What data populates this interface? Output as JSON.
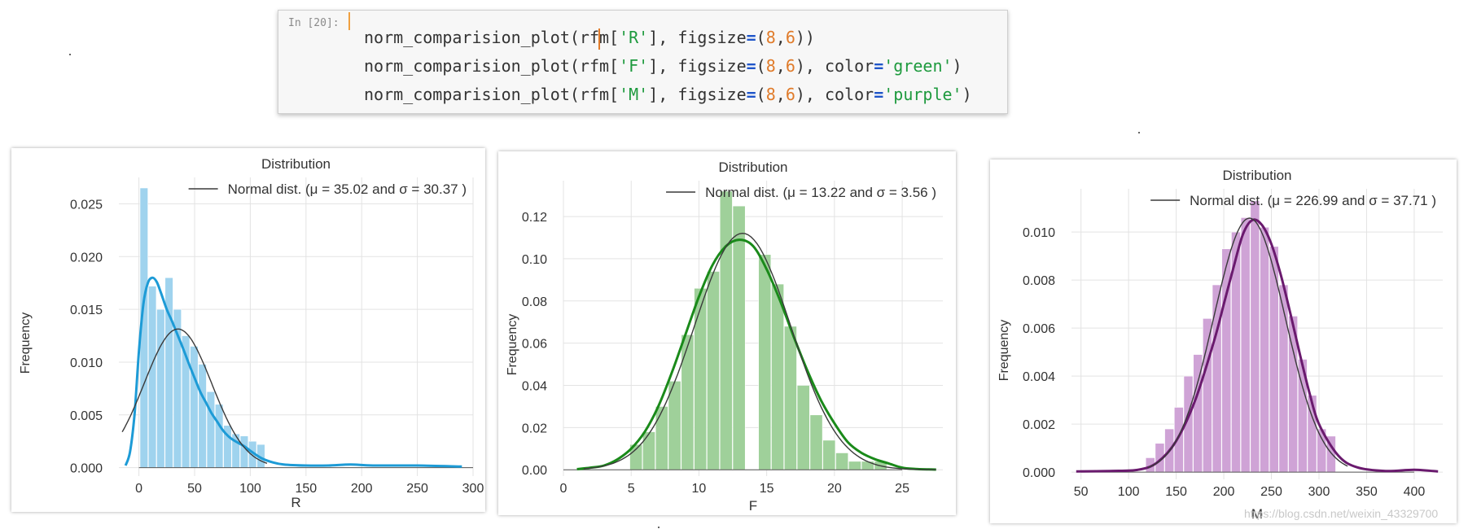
{
  "cell": {
    "prompt": "In [20]:",
    "lines": [
      [
        {
          "t": "norm_comparision_plot(rf",
          "c": "plain"
        },
        {
          "t": "cursor",
          "c": "cursor"
        },
        {
          "t": "m[",
          "c": "plain"
        },
        {
          "t": "'R'",
          "c": "str"
        },
        {
          "t": "], figsize",
          "c": "plain"
        },
        {
          "t": "=",
          "c": "op"
        },
        {
          "t": "(",
          "c": "plain"
        },
        {
          "t": "8",
          "c": "num"
        },
        {
          "t": ",",
          "c": "plain"
        },
        {
          "t": "6",
          "c": "num"
        },
        {
          "t": "))",
          "c": "plain"
        }
      ],
      [
        {
          "t": "norm_comparision_plot(rfm[",
          "c": "plain"
        },
        {
          "t": "'F'",
          "c": "str"
        },
        {
          "t": "], figsize",
          "c": "plain"
        },
        {
          "t": "=",
          "c": "op"
        },
        {
          "t": "(",
          "c": "plain"
        },
        {
          "t": "8",
          "c": "num"
        },
        {
          "t": ",",
          "c": "plain"
        },
        {
          "t": "6",
          "c": "num"
        },
        {
          "t": "), color",
          "c": "plain"
        },
        {
          "t": "=",
          "c": "op"
        },
        {
          "t": "'green'",
          "c": "str"
        },
        {
          "t": ")",
          "c": "plain"
        }
      ],
      [
        {
          "t": "norm_comparision_plot(rfm[",
          "c": "plain"
        },
        {
          "t": "'M'",
          "c": "str"
        },
        {
          "t": "], figsize",
          "c": "plain"
        },
        {
          "t": "=",
          "c": "op"
        },
        {
          "t": "(",
          "c": "plain"
        },
        {
          "t": "8",
          "c": "num"
        },
        {
          "t": ",",
          "c": "plain"
        },
        {
          "t": "6",
          "c": "num"
        },
        {
          "t": "), color",
          "c": "plain"
        },
        {
          "t": "=",
          "c": "op"
        },
        {
          "t": "'purple'",
          "c": "str"
        },
        {
          "t": ")",
          "c": "plain"
        }
      ]
    ]
  },
  "watermark": "https://blog.csdn.net/weixin_43329700",
  "chart_data": [
    {
      "type": "bar",
      "title": "Distribution",
      "xlabel": "R",
      "ylabel": "Frequency",
      "xlim": [
        -18,
        300
      ],
      "ylim": [
        -0.0008,
        0.0275
      ],
      "xticks": [
        0,
        50,
        100,
        150,
        200,
        250,
        300
      ],
      "yticks": [
        0.0,
        0.005,
        0.01,
        0.015,
        0.02,
        0.025
      ],
      "ytick_format": 3,
      "grid": true,
      "legend": {
        "placement": "top-right",
        "label": "Normal dist. (μ = 35.02 and σ = 30.37 )"
      },
      "colors": {
        "bars": "#9fd3ee",
        "kde": "#1d9bd6",
        "normal": "#3a3a3a"
      },
      "hist": {
        "bin_width": 7.5,
        "edges_start": 1,
        "values": [
          0.0265,
          0.0172,
          0.015,
          0.018,
          0.015,
          0.0125,
          0.0115,
          0.0098,
          0.0072,
          0.006,
          0.004,
          0.0032,
          0.003,
          0.0025,
          0.0022
        ]
      },
      "kde": {
        "x": [
          -12,
          -8,
          -4,
          0,
          4,
          8,
          12,
          16,
          20,
          25,
          30,
          35,
          40,
          45,
          50,
          55,
          60,
          65,
          70,
          75,
          80,
          85,
          90,
          95,
          100,
          110,
          120,
          130,
          150,
          170,
          190,
          210,
          250,
          290
        ],
        "y": [
          0.0002,
          0.0015,
          0.005,
          0.011,
          0.0155,
          0.0175,
          0.018,
          0.0176,
          0.0165,
          0.015,
          0.0138,
          0.0125,
          0.0112,
          0.0098,
          0.0085,
          0.0072,
          0.0062,
          0.0052,
          0.0044,
          0.0036,
          0.003,
          0.0026,
          0.0023,
          0.002,
          0.0016,
          0.0009,
          0.0005,
          0.0003,
          0.0002,
          0.0002,
          0.0003,
          0.0002,
          0.0002,
          0.0001
        ]
      },
      "normal": {
        "mu": 35.02,
        "sigma": 30.37,
        "xmin": -15,
        "xmax": 115
      }
    },
    {
      "type": "bar",
      "title": "Distribution",
      "xlabel": "F",
      "ylabel": "Frequency",
      "xlim": [
        0,
        28
      ],
      "ylim": [
        -0.003,
        0.137
      ],
      "xticks": [
        0,
        5,
        10,
        15,
        20,
        25
      ],
      "yticks": [
        0.0,
        0.02,
        0.04,
        0.06,
        0.08,
        0.1,
        0.12
      ],
      "ytick_format": 2,
      "grid": true,
      "legend": {
        "placement": "top-right",
        "label": "Normal dist. (μ = 13.22 and σ = 3.56 )"
      },
      "colors": {
        "bars": "#9fd09a",
        "kde": "#1a8a1a",
        "normal": "#3a3a3a"
      },
      "hist": {
        "bin_width": 0.95,
        "edges_start": 4.9,
        "values": [
          0.012,
          0.018,
          0.03,
          0.042,
          0.064,
          0.086,
          0.094,
          0.132,
          0.125,
          0.0,
          0.102,
          0.088,
          0.068,
          0.04,
          0.026,
          0.014,
          0.008,
          0.004,
          0.004,
          0.004
        ]
      },
      "kde": {
        "x": [
          1,
          2,
          3,
          4,
          5,
          6,
          7,
          8,
          9,
          10,
          11,
          12,
          13,
          14,
          15,
          16,
          17,
          18,
          19,
          20,
          21,
          22,
          23,
          24,
          25,
          26,
          27.5
        ],
        "y": [
          0.0003,
          0.001,
          0.002,
          0.005,
          0.01,
          0.018,
          0.03,
          0.046,
          0.064,
          0.082,
          0.097,
          0.106,
          0.109,
          0.106,
          0.095,
          0.08,
          0.063,
          0.047,
          0.033,
          0.022,
          0.013,
          0.008,
          0.005,
          0.003,
          0.001,
          0.0004,
          0.0001
        ]
      },
      "normal": {
        "mu": 13.22,
        "sigma": 3.56,
        "xmin": 1.5,
        "xmax": 27.5
      }
    },
    {
      "type": "bar",
      "title": "Distribution",
      "xlabel": "M",
      "ylabel": "Frequency",
      "xlim": [
        40,
        430
      ],
      "ylim": [
        -0.0003,
        0.0118
      ],
      "xticks": [
        50,
        100,
        150,
        200,
        250,
        300,
        350,
        400
      ],
      "yticks": [
        0.0,
        0.002,
        0.004,
        0.006,
        0.008,
        0.01
      ],
      "ytick_format": 3,
      "grid": true,
      "legend": {
        "placement": "top-right",
        "label": "Normal dist. (μ = 226.99 and σ = 37.71 )"
      },
      "colors": {
        "bars": "#cfa3d6",
        "kde": "#6a1a6e",
        "normal": "#3a3a3a"
      },
      "hist": {
        "bin_width": 10,
        "edges_start": 118,
        "values": [
          0.0006,
          0.0012,
          0.0018,
          0.0027,
          0.004,
          0.0049,
          0.0064,
          0.0078,
          0.0093,
          0.01,
          0.0106,
          0.0113,
          0.0102,
          0.0094,
          0.0078,
          0.0065,
          0.0047,
          0.0032,
          0.0018,
          0.0015
        ]
      },
      "kde": {
        "x": [
          45,
          80,
          110,
          130,
          150,
          170,
          190,
          200,
          210,
          220,
          230,
          240,
          250,
          260,
          270,
          280,
          290,
          300,
          320,
          340,
          370,
          400,
          425
        ],
        "y": [
          3e-05,
          5e-05,
          0.0001,
          0.0004,
          0.0013,
          0.003,
          0.0055,
          0.007,
          0.0085,
          0.0099,
          0.0105,
          0.0103,
          0.0095,
          0.0082,
          0.0066,
          0.0049,
          0.0033,
          0.002,
          0.0007,
          0.0002,
          5e-05,
          0.0001,
          3e-05
        ]
      },
      "normal": {
        "mu": 226.99,
        "sigma": 37.71,
        "xmin": 120,
        "xmax": 330
      }
    }
  ]
}
